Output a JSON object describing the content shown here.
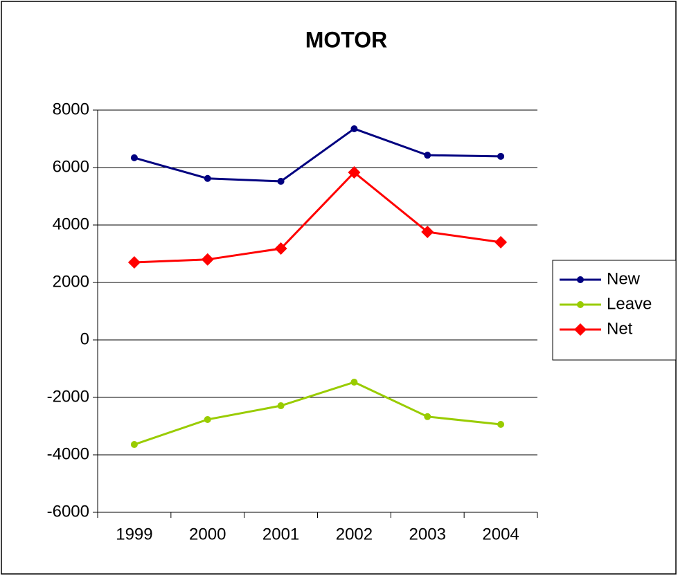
{
  "chart_data": {
    "type": "line",
    "title": "MOTOR",
    "categories": [
      "1999",
      "2000",
      "2001",
      "2002",
      "2003",
      "2004"
    ],
    "series": [
      {
        "name": "New",
        "color": "#000080",
        "marker": "circle",
        "values": [
          6340,
          5620,
          5520,
          7350,
          6430,
          6390
        ]
      },
      {
        "name": "Leave",
        "color": "#99cc00",
        "marker": "circle",
        "values": [
          -3640,
          -2770,
          -2290,
          -1470,
          -2670,
          -2940
        ]
      },
      {
        "name": "Net",
        "color": "#ff0000",
        "marker": "diamond",
        "values": [
          2700,
          2800,
          3180,
          5830,
          3760,
          3400
        ]
      }
    ],
    "ylim": [
      -6000,
      8000
    ],
    "yticks": [
      -6000,
      -4000,
      -2000,
      0,
      2000,
      4000,
      6000,
      8000
    ],
    "grid": true,
    "legend": "right"
  }
}
